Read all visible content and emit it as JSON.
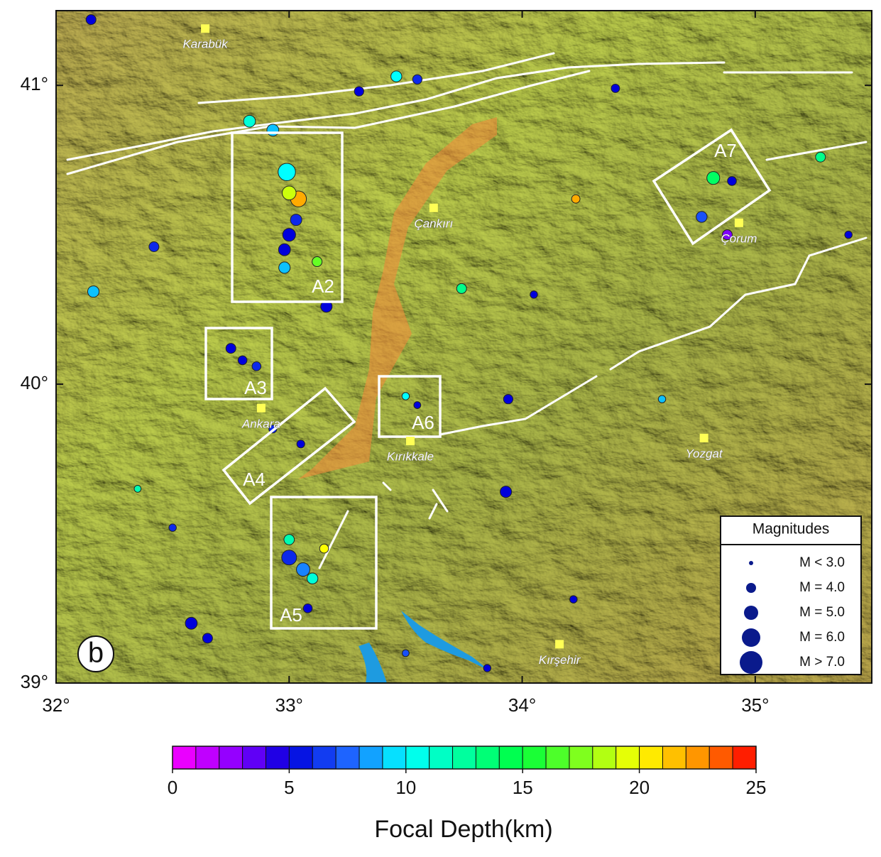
{
  "figure_label": "b",
  "lon_axis": {
    "lim": [
      32,
      35.5
    ],
    "ticks": [
      {
        "value": 32,
        "label": "32°"
      },
      {
        "value": 33,
        "label": "33°"
      },
      {
        "value": 34,
        "label": "34°"
      },
      {
        "value": 35,
        "label": "35°"
      }
    ]
  },
  "lat_axis": {
    "lim": [
      39,
      41.25
    ],
    "ticks": [
      {
        "value": 39,
        "label": "39°"
      },
      {
        "value": 40,
        "label": "40°"
      },
      {
        "value": 41,
        "label": "41°"
      }
    ]
  },
  "cities": [
    {
      "name": "Karabük",
      "lon": 32.64,
      "lat": 41.19
    },
    {
      "name": "Çankırı",
      "lon": 33.62,
      "lat": 40.59
    },
    {
      "name": "Çorum",
      "lon": 34.93,
      "lat": 40.54
    },
    {
      "name": "Ankara",
      "lon": 32.88,
      "lat": 39.92
    },
    {
      "name": "Kırıkkale",
      "lon": 33.52,
      "lat": 39.81
    },
    {
      "name": "Yozgat",
      "lon": 34.78,
      "lat": 39.82
    },
    {
      "name": "Kırşehir",
      "lon": 34.16,
      "lat": 39.13
    }
  ],
  "areas": [
    "A2",
    "A3",
    "A4",
    "A5",
    "A6",
    "A7"
  ],
  "legend": {
    "title": "Magnitudes",
    "items": [
      "M <  3.0",
      "M =  4.0",
      "M =  5.0",
      "M =  6.0",
      "M >  7.0"
    ]
  },
  "colorbar": {
    "label": "Focal Depth(km)",
    "lim": [
      0,
      25
    ],
    "ticks": [
      0,
      5,
      10,
      15,
      20,
      25
    ]
  },
  "events": [
    {
      "lon": 32.99,
      "lat": 40.71,
      "depth": 10,
      "mag": 5.5
    },
    {
      "lon": 33.04,
      "lat": 40.62,
      "depth": 22,
      "mag": 5.2
    },
    {
      "lon": 33.0,
      "lat": 40.64,
      "depth": 19,
      "mag": 4.8
    },
    {
      "lon": 33.0,
      "lat": 40.5,
      "depth": 5,
      "mag": 4.6
    },
    {
      "lon": 32.98,
      "lat": 40.45,
      "depth": 5,
      "mag": 4.4
    },
    {
      "lon": 33.03,
      "lat": 40.55,
      "depth": 6,
      "mag": 4.3
    },
    {
      "lon": 32.98,
      "lat": 40.39,
      "depth": 9,
      "mag": 4.3
    },
    {
      "lon": 33.12,
      "lat": 40.41,
      "depth": 17,
      "mag": 4.0
    },
    {
      "lon": 33.16,
      "lat": 40.26,
      "depth": 5,
      "mag": 4.3
    },
    {
      "lon": 32.93,
      "lat": 40.85,
      "depth": 9,
      "mag": 4.4
    },
    {
      "lon": 32.83,
      "lat": 40.88,
      "depth": 11,
      "mag": 4.4
    },
    {
      "lon": 32.75,
      "lat": 40.12,
      "depth": 5,
      "mag": 4.0
    },
    {
      "lon": 32.8,
      "lat": 40.08,
      "depth": 5,
      "mag": 3.8
    },
    {
      "lon": 32.86,
      "lat": 40.06,
      "depth": 6,
      "mag": 3.8
    },
    {
      "lon": 33.0,
      "lat": 39.42,
      "depth": 6,
      "mag": 5.0
    },
    {
      "lon": 33.06,
      "lat": 39.38,
      "depth": 8,
      "mag": 4.7
    },
    {
      "lon": 33.1,
      "lat": 39.35,
      "depth": 11,
      "mag": 4.2
    },
    {
      "lon": 33.0,
      "lat": 39.48,
      "depth": 12,
      "mag": 4.1
    },
    {
      "lon": 33.15,
      "lat": 39.45,
      "depth": 20,
      "mag": 3.8
    },
    {
      "lon": 33.08,
      "lat": 39.25,
      "depth": 5,
      "mag": 3.8
    },
    {
      "lon": 32.93,
      "lat": 39.85,
      "depth": 6,
      "mag": 3.6
    },
    {
      "lon": 33.05,
      "lat": 39.8,
      "depth": 5,
      "mag": 3.6
    },
    {
      "lon": 33.5,
      "lat": 39.96,
      "depth": 10,
      "mag": 3.5
    },
    {
      "lon": 33.55,
      "lat": 39.93,
      "depth": 5,
      "mag": 3.4
    },
    {
      "lon": 34.82,
      "lat": 40.69,
      "depth": 14,
      "mag": 4.6
    },
    {
      "lon": 34.77,
      "lat": 40.56,
      "depth": 7,
      "mag": 4.2
    },
    {
      "lon": 34.9,
      "lat": 40.68,
      "depth": 5,
      "mag": 3.8
    },
    {
      "lon": 35.28,
      "lat": 40.76,
      "depth": 13,
      "mag": 4.0
    },
    {
      "lon": 34.88,
      "lat": 40.5,
      "depth": 3,
      "mag": 4.0
    },
    {
      "lon": 32.16,
      "lat": 40.31,
      "depth": 9,
      "mag": 4.3
    },
    {
      "lon": 33.74,
      "lat": 40.32,
      "depth": 13,
      "mag": 4.0
    },
    {
      "lon": 33.93,
      "lat": 39.64,
      "depth": 5,
      "mag": 4.3
    },
    {
      "lon": 33.94,
      "lat": 39.95,
      "depth": 5,
      "mag": 3.9
    },
    {
      "lon": 32.58,
      "lat": 39.2,
      "depth": 5,
      "mag": 4.4
    },
    {
      "lon": 32.65,
      "lat": 39.15,
      "depth": 5,
      "mag": 4.0
    },
    {
      "lon": 32.42,
      "lat": 40.46,
      "depth": 6,
      "mag": 4.0
    },
    {
      "lon": 33.3,
      "lat": 40.98,
      "depth": 5,
      "mag": 3.9
    },
    {
      "lon": 33.46,
      "lat": 41.03,
      "depth": 10,
      "mag": 4.2
    },
    {
      "lon": 34.4,
      "lat": 40.99,
      "depth": 5,
      "mag": 3.7
    },
    {
      "lon": 34.23,
      "lat": 40.62,
      "depth": 22,
      "mag": 3.7
    },
    {
      "lon": 33.55,
      "lat": 41.02,
      "depth": 6,
      "mag": 3.9
    },
    {
      "lon": 32.15,
      "lat": 41.22,
      "depth": 5,
      "mag": 4.0
    },
    {
      "lon": 34.05,
      "lat": 40.3,
      "depth": 5,
      "mag": 3.5
    },
    {
      "lon": 35.4,
      "lat": 40.5,
      "depth": 5,
      "mag": 3.5
    },
    {
      "lon": 34.22,
      "lat": 39.28,
      "depth": 5,
      "mag": 3.5
    },
    {
      "lon": 33.5,
      "lat": 39.1,
      "depth": 7,
      "mag": 3.4
    },
    {
      "lon": 32.35,
      "lat": 39.65,
      "depth": 12,
      "mag": 3.4
    },
    {
      "lon": 33.85,
      "lat": 39.05,
      "depth": 5,
      "mag": 3.5
    },
    {
      "lon": 32.5,
      "lat": 39.52,
      "depth": 6,
      "mag": 3.5
    },
    {
      "lon": 34.6,
      "lat": 39.95,
      "depth": 9,
      "mag": 3.5
    }
  ]
}
